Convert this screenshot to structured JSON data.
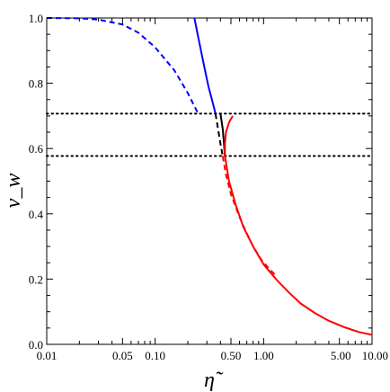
{
  "chart_data": {
    "type": "line",
    "title": "",
    "xlabel": "η̃",
    "ylabel": "v_w",
    "xscale": "log",
    "xlim": [
      0.01,
      10.0
    ],
    "ylim": [
      0.0,
      1.0
    ],
    "x_ticks": [
      {
        "value": 0.01,
        "label": "0.01"
      },
      {
        "value": 0.05,
        "label": "0.05"
      },
      {
        "value": 0.1,
        "label": "0.10"
      },
      {
        "value": 0.5,
        "label": "0.50"
      },
      {
        "value": 1.0,
        "label": "1.00"
      },
      {
        "value": 5.0,
        "label": "5.00"
      },
      {
        "value": 10.0,
        "label": "10.00"
      }
    ],
    "y_ticks": [
      {
        "value": 0.0,
        "label": "0.0"
      },
      {
        "value": 0.2,
        "label": "0.2"
      },
      {
        "value": 0.4,
        "label": "0.4"
      },
      {
        "value": 0.6,
        "label": "0.6"
      },
      {
        "value": 0.8,
        "label": "0.8"
      },
      {
        "value": 1.0,
        "label": "1.0"
      }
    ],
    "grid": false,
    "reference_lines": [
      {
        "y": 0.707,
        "style": "dotted",
        "color": "#000000"
      },
      {
        "y": 0.577,
        "style": "dotted",
        "color": "#000000"
      }
    ],
    "series": [
      {
        "color": "#0000ff",
        "style": "dashed",
        "points": [
          [
            0.01,
            1.0
          ],
          [
            0.02,
            0.999
          ],
          [
            0.03,
            0.995
          ],
          [
            0.05,
            0.98
          ],
          [
            0.07,
            0.955
          ],
          [
            0.1,
            0.91
          ],
          [
            0.15,
            0.84
          ],
          [
            0.2,
            0.77
          ],
          [
            0.25,
            0.706
          ]
        ]
      },
      {
        "color": "#0000ff",
        "style": "solid",
        "points": [
          [
            0.23,
            1.0
          ],
          [
            0.25,
            0.94
          ],
          [
            0.28,
            0.86
          ],
          [
            0.31,
            0.79
          ],
          [
            0.34,
            0.74
          ],
          [
            0.36,
            0.707
          ]
        ]
      },
      {
        "color": "#000000",
        "style": "dashed",
        "points": [
          [
            0.36,
            0.707
          ],
          [
            0.38,
            0.66
          ],
          [
            0.4,
            0.615
          ],
          [
            0.42,
            0.577
          ]
        ]
      },
      {
        "color": "#000000",
        "style": "solid",
        "points": [
          [
            0.4,
            0.707
          ],
          [
            0.42,
            0.66
          ],
          [
            0.43,
            0.62
          ],
          [
            0.44,
            0.577
          ]
        ]
      },
      {
        "color": "#ff0000",
        "style": "solid",
        "points": [
          [
            0.44,
            0.577
          ],
          [
            0.44,
            0.615
          ],
          [
            0.45,
            0.65
          ],
          [
            0.48,
            0.68
          ],
          [
            0.52,
            0.7
          ]
        ]
      },
      {
        "color": "#ff0000",
        "style": "dashed",
        "points": [
          [
            0.42,
            0.577
          ],
          [
            0.45,
            0.52
          ],
          [
            0.5,
            0.46
          ],
          [
            0.6,
            0.39
          ],
          [
            0.7,
            0.34
          ],
          [
            0.8,
            0.3
          ],
          [
            0.95,
            0.26
          ],
          [
            1.1,
            0.235
          ],
          [
            1.3,
            0.21
          ]
        ]
      },
      {
        "color": "#ff0000",
        "style": "solid",
        "points": [
          [
            0.44,
            0.577
          ],
          [
            0.48,
            0.5
          ],
          [
            0.55,
            0.43
          ],
          [
            0.65,
            0.36
          ],
          [
            0.8,
            0.3
          ],
          [
            1.0,
            0.245
          ],
          [
            1.3,
            0.2
          ],
          [
            1.7,
            0.16
          ],
          [
            2.2,
            0.125
          ],
          [
            3.0,
            0.095
          ],
          [
            4.0,
            0.072
          ],
          [
            5.5,
            0.053
          ],
          [
            7.5,
            0.038
          ],
          [
            10.0,
            0.029
          ]
        ]
      }
    ]
  }
}
